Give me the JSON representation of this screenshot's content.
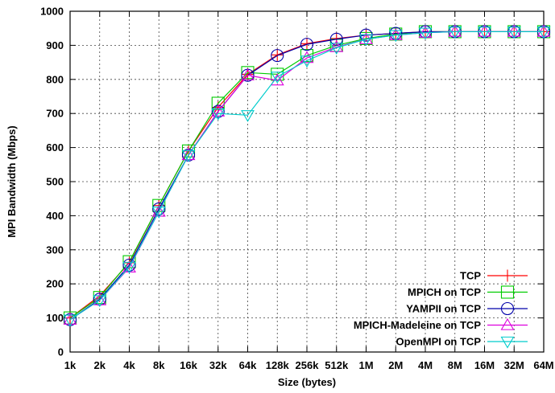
{
  "chart_data": {
    "type": "line",
    "title": "",
    "xlabel": "Size (bytes)",
    "ylabel": "MPI Bandwidth (Mbps)",
    "ylim": [
      0,
      1000
    ],
    "yticks": [
      0,
      100,
      200,
      300,
      400,
      500,
      600,
      700,
      800,
      900,
      1000
    ],
    "categories": [
      "1k",
      "2k",
      "4k",
      "8k",
      "16k",
      "32k",
      "64k",
      "128k",
      "256k",
      "512k",
      "1M",
      "2M",
      "4M",
      "8M",
      "16M",
      "32M",
      "64M"
    ],
    "grid": true,
    "legend_position": "bottom-right",
    "series": [
      {
        "name": "TCP",
        "color": "#ff0000",
        "marker": "plus",
        "values": [
          100,
          165,
          262,
          430,
          590,
          718,
          815,
          872,
          905,
          920,
          930,
          935,
          940,
          940,
          940,
          940,
          940
        ]
      },
      {
        "name": "MPICH on TCP",
        "color": "#00cc00",
        "marker": "square",
        "values": [
          100,
          160,
          265,
          430,
          590,
          730,
          820,
          815,
          870,
          900,
          920,
          933,
          940,
          940,
          940,
          940,
          940
        ]
      },
      {
        "name": "YAMPII on TCP",
        "color": "#0000aa",
        "marker": "circle",
        "values": [
          95,
          155,
          255,
          420,
          578,
          706,
          812,
          870,
          903,
          918,
          930,
          935,
          940,
          940,
          940,
          940,
          940
        ]
      },
      {
        "name": "MPICH-Madeleine on TCP",
        "color": "#dd00dd",
        "marker": "triangle",
        "values": [
          95,
          152,
          248,
          412,
          578,
          706,
          812,
          797,
          863,
          895,
          918,
          930,
          937,
          940,
          940,
          940,
          940
        ]
      },
      {
        "name": "OpenMPI on TCP",
        "color": "#00cccc",
        "marker": "triangle-down",
        "values": [
          95,
          152,
          250,
          412,
          578,
          700,
          695,
          808,
          855,
          893,
          918,
          930,
          937,
          940,
          940,
          940,
          940
        ]
      }
    ]
  }
}
